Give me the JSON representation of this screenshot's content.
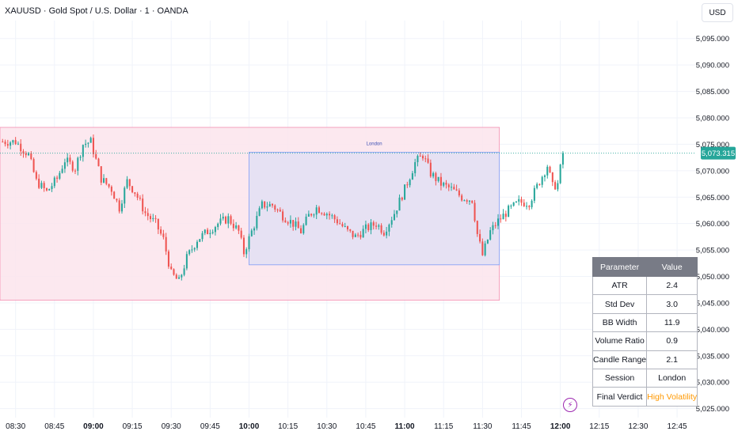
{
  "header": {
    "title": "XAUUSD · Gold Spot / U.S. Dollar · 1 · OANDA",
    "currency": "USD"
  },
  "colors": {
    "up": "#26a69a",
    "down": "#ef5350",
    "session_outer_fill": "#fce4ec",
    "session_outer_border": "#f48fb1",
    "session_inner_fill": "#e3e0f3",
    "session_inner_border": "#7f9cf5",
    "price_line": "#26a69a",
    "verdict": "#ff9800"
  },
  "chart_data": {
    "type": "candlestick",
    "y_ticks": [
      "5,095.000",
      "5,090.000",
      "5,085.000",
      "5,080.000",
      "5,075.000",
      "5,070.000",
      "5,065.000",
      "5,060.000",
      "5,055.000",
      "5,050.000",
      "5,045.000",
      "5,040.000",
      "5,035.000",
      "5,030.000",
      "5,025.000"
    ],
    "y_tick_values": [
      5095,
      5090,
      5085,
      5080,
      5075,
      5070,
      5065,
      5060,
      5055,
      5050,
      5045,
      5040,
      5035,
      5030,
      5025
    ],
    "ylim": [
      5023.3,
      5098.4
    ],
    "x_labels": [
      {
        "text": "08:30",
        "minute": 0,
        "bold": false
      },
      {
        "text": "08:45",
        "minute": 15,
        "bold": false
      },
      {
        "text": "09:00",
        "minute": 30,
        "bold": true
      },
      {
        "text": "09:15",
        "minute": 45,
        "bold": false
      },
      {
        "text": "09:30",
        "minute": 60,
        "bold": false
      },
      {
        "text": "09:45",
        "minute": 75,
        "bold": false
      },
      {
        "text": "10:00",
        "minute": 90,
        "bold": true
      },
      {
        "text": "10:15",
        "minute": 105,
        "bold": false
      },
      {
        "text": "10:30",
        "minute": 120,
        "bold": false
      },
      {
        "text": "10:45",
        "minute": 135,
        "bold": false
      },
      {
        "text": "11:00",
        "minute": 150,
        "bold": true
      },
      {
        "text": "11:15",
        "minute": 165,
        "bold": false
      },
      {
        "text": "11:30",
        "minute": 180,
        "bold": false
      },
      {
        "text": "11:45",
        "minute": 195,
        "bold": false
      },
      {
        "text": "12:00",
        "minute": 210,
        "bold": true
      },
      {
        "text": "12:15",
        "minute": 225,
        "bold": false
      },
      {
        "text": "12:30",
        "minute": 240,
        "bold": false
      },
      {
        "text": "12:45",
        "minute": 255,
        "bold": false
      }
    ],
    "x_minute_range": [
      -6,
      262
    ],
    "last_price": "5,073.315",
    "last_price_value": 5073.315,
    "sessions": [
      {
        "minute_start": -6,
        "minute_end": 186.5,
        "high": 5078.2,
        "low": 5045.5,
        "label": ""
      },
      {
        "minute_start": 90,
        "minute_end": 186.5,
        "high": 5073.5,
        "low": 5052.2,
        "label": "London"
      }
    ],
    "candles_start_minute": -5,
    "waypoints": [
      [
        0,
        5075.5
      ],
      [
        5,
        5073.0
      ],
      [
        8,
        5068.0
      ],
      [
        12,
        5066.0
      ],
      [
        16,
        5068.5
      ],
      [
        19,
        5072.0
      ],
      [
        23,
        5070.5
      ],
      [
        26,
        5075.0
      ],
      [
        29,
        5075.5
      ],
      [
        33,
        5068.5
      ],
      [
        37,
        5066.5
      ],
      [
        40,
        5063.0
      ],
      [
        43,
        5068.0
      ],
      [
        46,
        5066.0
      ],
      [
        50,
        5062.0
      ],
      [
        54,
        5060.0
      ],
      [
        57,
        5057.0
      ],
      [
        60,
        5050.5
      ],
      [
        63,
        5049.0
      ],
      [
        66,
        5053.5
      ],
      [
        70,
        5057.0
      ],
      [
        74,
        5058.5
      ],
      [
        78,
        5060.0
      ],
      [
        82,
        5061.0
      ],
      [
        86,
        5058.5
      ],
      [
        88,
        5054.5
      ],
      [
        91,
        5058.5
      ],
      [
        95,
        5063.5
      ],
      [
        99,
        5063.5
      ],
      [
        103,
        5061.5
      ],
      [
        107,
        5060.0
      ],
      [
        110,
        5058.5
      ],
      [
        113,
        5061.5
      ],
      [
        116,
        5063.0
      ],
      [
        120,
        5062.0
      ],
      [
        124,
        5060.5
      ],
      [
        128,
        5058.5
      ],
      [
        131,
        5057.5
      ],
      [
        135,
        5059.0
      ],
      [
        139,
        5060.0
      ],
      [
        142,
        5058.5
      ],
      [
        146,
        5062.0
      ],
      [
        150,
        5066.5
      ],
      [
        154,
        5071.5
      ],
      [
        157,
        5073.0
      ],
      [
        160,
        5069.5
      ],
      [
        164,
        5067.5
      ],
      [
        168,
        5066.5
      ],
      [
        172,
        5065.0
      ],
      [
        176,
        5064.5
      ],
      [
        178,
        5058.0
      ],
      [
        180,
        5054.0
      ],
      [
        183,
        5058.5
      ],
      [
        186,
        5060.5
      ],
      [
        190,
        5062.5
      ],
      [
        194,
        5064.0
      ],
      [
        198,
        5064.0
      ],
      [
        202,
        5068.0
      ],
      [
        205,
        5071.0
      ],
      [
        207,
        5067.0
      ],
      [
        209,
        5067.5
      ],
      [
        211,
        5073.3
      ]
    ]
  },
  "stats_table": {
    "headers": [
      "Parameter",
      "Value"
    ],
    "rows": [
      {
        "param": "ATR",
        "value": "2.4"
      },
      {
        "param": "Std Dev",
        "value": "3.0"
      },
      {
        "param": "BB Width",
        "value": "11.9"
      },
      {
        "param": "Volume Ratio",
        "value": "0.9"
      },
      {
        "param": "Candle Range",
        "value": "2.1"
      },
      {
        "param": "Session",
        "value": "London"
      },
      {
        "param": "Final Verdict",
        "value": "High Volatility"
      }
    ]
  },
  "bolt_icon": "lightning-icon"
}
